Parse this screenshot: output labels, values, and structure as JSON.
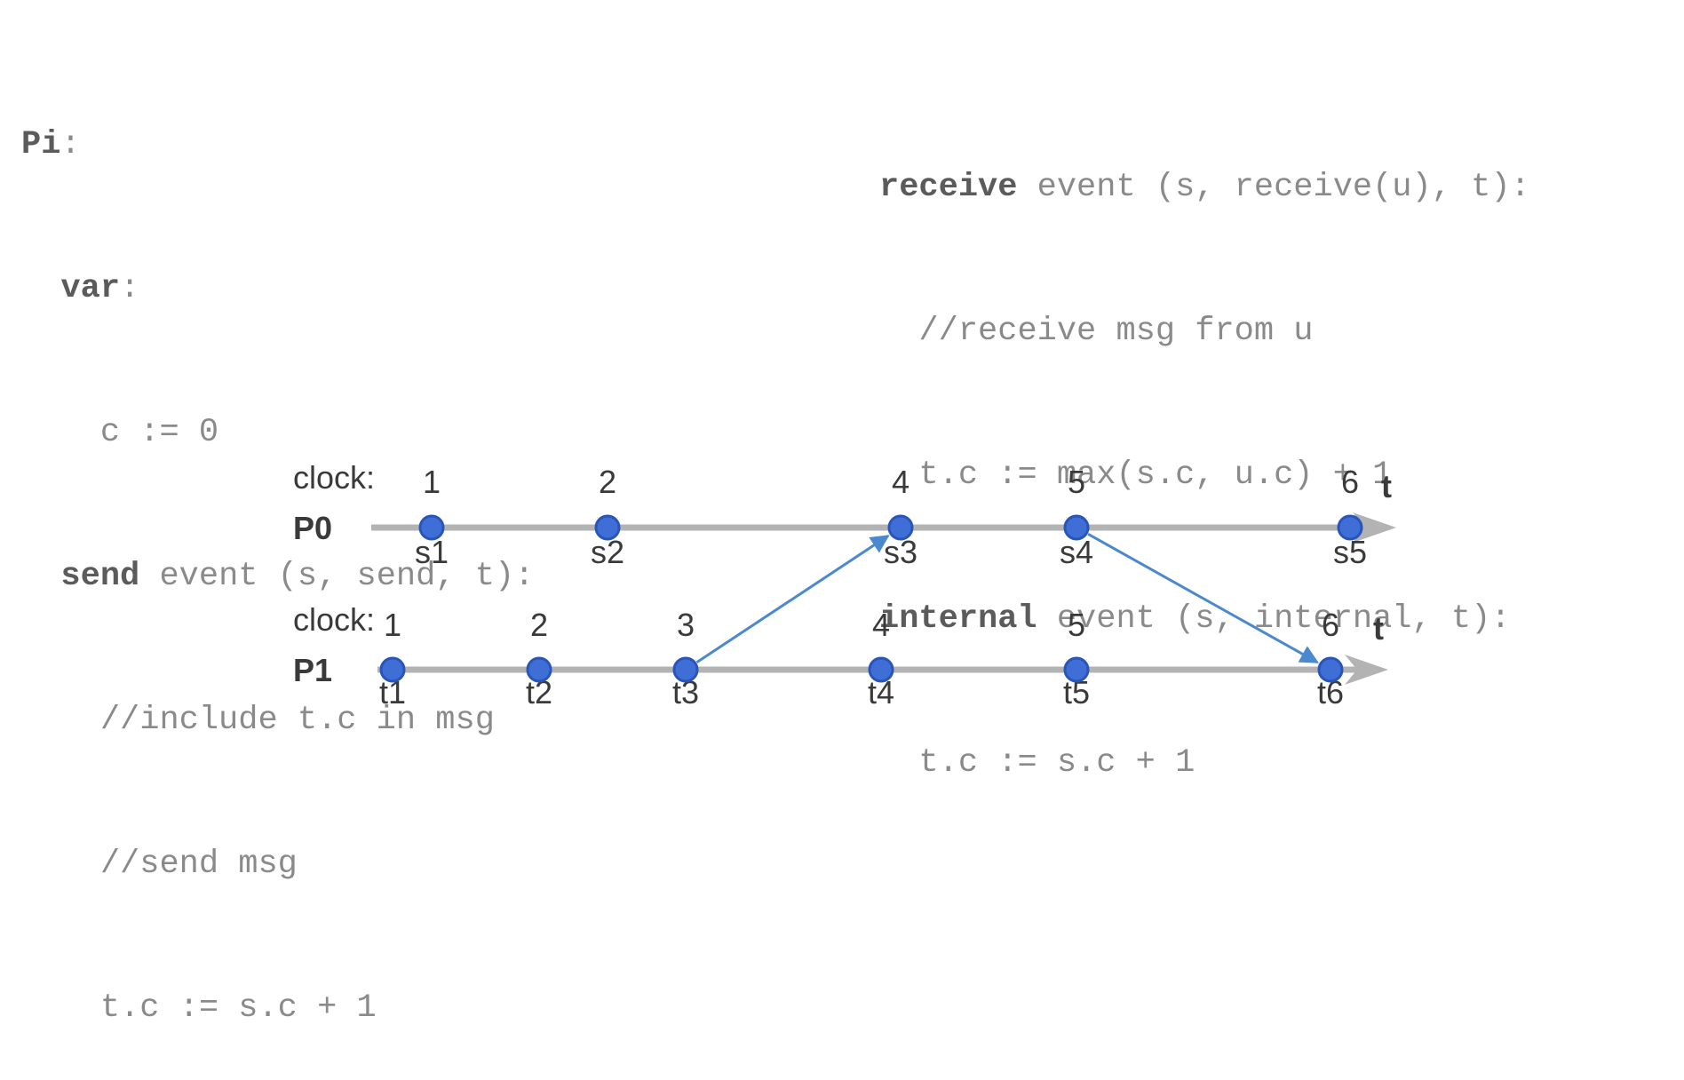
{
  "code_left": {
    "header": "Pi",
    "header_colon": ":",
    "var_kw": "var",
    "var_colon": ":",
    "init": "c := 0",
    "send_kw": "send",
    "send_sig": " event (s, send, t):",
    "send_body": [
      "//include t.c in msg",
      "//send msg",
      "t.c := s.c + 1"
    ]
  },
  "code_right": {
    "receive_kw": "receive",
    "receive_sig": " event (s, receive(u), t):",
    "receive_body": [
      "//receive msg from u",
      "t.c := max(s.c, u.c) + 1"
    ],
    "internal_kw": "internal",
    "internal_sig": " event (s, internal, t):",
    "internal_body": [
      "t.c := s.c + 1"
    ]
  },
  "diagram": {
    "colors": {
      "timeline": "#b3b3b3",
      "event": "#3f6fd6",
      "event_stroke": "#2a55b8",
      "message": "#4a88d0"
    },
    "axis_label": "t",
    "processes": [
      {
        "id": "P0",
        "clock_label": "clock:",
        "name": "P0",
        "events": [
          {
            "name": "s1",
            "clock": "1",
            "t": 1.2
          },
          {
            "name": "s2",
            "clock": "2",
            "t": 2.1
          },
          {
            "name": "s3",
            "clock": "4",
            "t": 3.6
          },
          {
            "name": "s4",
            "clock": "5",
            "t": 4.5
          },
          {
            "name": "s5",
            "clock": "6",
            "t": 5.9
          }
        ]
      },
      {
        "id": "P1",
        "clock_label": "clock:",
        "name": "P1",
        "events": [
          {
            "name": "t1",
            "clock": "1",
            "t": 1.0
          },
          {
            "name": "t2",
            "clock": "2",
            "t": 1.75
          },
          {
            "name": "t3",
            "clock": "3",
            "t": 2.5
          },
          {
            "name": "t4",
            "clock": "4",
            "t": 3.5
          },
          {
            "name": "t5",
            "clock": "5",
            "t": 4.5
          },
          {
            "name": "t6",
            "clock": "6",
            "t": 5.8
          }
        ]
      }
    ],
    "messages": [
      {
        "from": "t3",
        "to": "s3"
      },
      {
        "from": "s4",
        "to": "t6"
      }
    ]
  }
}
